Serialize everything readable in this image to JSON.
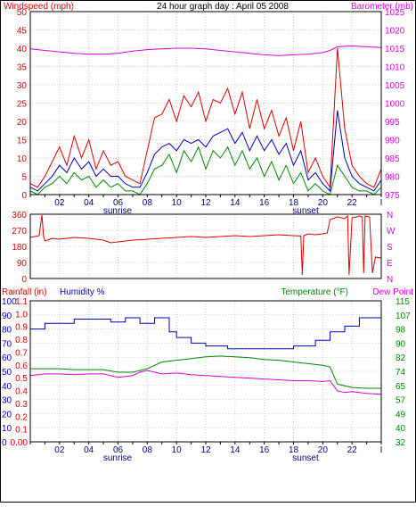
{
  "title": "24 hour graph day : April 05 2008",
  "colors": {
    "red": "#dd0000",
    "magenta": "#dd00dd",
    "blue": "#0000bb",
    "green": "#008800",
    "frame": "#000000"
  },
  "chart_data": [
    {
      "type": "line",
      "name": "wind-baro",
      "left_label": "Windspeed (mph)",
      "right_label": "Barometer (mb)",
      "left_ticks": [
        "0",
        "5",
        "10",
        "15",
        "20",
        "25",
        "30",
        "35",
        "40",
        "45",
        "50"
      ],
      "right_ticks": [
        "975",
        "980",
        "985",
        "990",
        "995",
        "1000",
        "1005",
        "1010",
        "1015",
        "1020",
        "1025"
      ],
      "x_ticks": [
        "02",
        "04",
        "06",
        "08",
        "10",
        "12",
        "14",
        "16",
        "18",
        "20",
        "22"
      ],
      "x_labels_below": [
        "sunrise",
        "sunset"
      ],
      "ylim_left": [
        0,
        50
      ],
      "ylim_right": [
        975,
        1025
      ],
      "xlim": [
        0,
        24
      ],
      "series": [
        {
          "color": "magenta",
          "axis": "right",
          "x": [
            0,
            1,
            2,
            3,
            4,
            5,
            6,
            7,
            8,
            9,
            10,
            11,
            12,
            13,
            14,
            15,
            16,
            17,
            18,
            19,
            20,
            20.5,
            21,
            22,
            23,
            24
          ],
          "y": [
            1014.8,
            1014.4,
            1014,
            1013.6,
            1013.4,
            1013.4,
            1013.6,
            1014.2,
            1014.6,
            1014.8,
            1015,
            1015,
            1014.8,
            1014.4,
            1014,
            1013.6,
            1013.2,
            1013,
            1013.2,
            1013.4,
            1013.8,
            1014.4,
            1015.4,
            1015.6,
            1015.4,
            1015.2
          ]
        },
        {
          "color": "red",
          "axis": "left",
          "x": [
            0,
            0.5,
            1,
            1.5,
            2,
            2.5,
            3,
            3.5,
            4,
            4.5,
            5,
            5.5,
            6,
            6.5,
            7,
            7.5,
            8,
            8.5,
            9,
            9.5,
            10,
            10.5,
            11,
            11.5,
            12,
            12.5,
            13,
            13.5,
            14,
            14.5,
            15,
            15.5,
            16,
            16.5,
            17,
            17.5,
            18,
            18.5,
            19,
            19.5,
            20,
            20.5,
            21,
            21.5,
            22,
            22.5,
            23,
            23.5,
            24
          ],
          "y": [
            3,
            2,
            5,
            9,
            13,
            8,
            16,
            10,
            15,
            7,
            12,
            8,
            9,
            5,
            4,
            3,
            12,
            21,
            22,
            26,
            20,
            27,
            24,
            28,
            20,
            26,
            25,
            29,
            22,
            28,
            18,
            26,
            18,
            23,
            16,
            21,
            12,
            20,
            6,
            10,
            5,
            2,
            40,
            18,
            8,
            5,
            3,
            2,
            7
          ]
        },
        {
          "color": "blue",
          "axis": "left",
          "x": [
            0,
            0.5,
            1,
            1.5,
            2,
            2.5,
            3,
            3.5,
            4,
            4.5,
            5,
            5.5,
            6,
            6.5,
            7,
            7.5,
            8,
            8.5,
            9,
            9.5,
            10,
            10.5,
            11,
            11.5,
            12,
            12.5,
            13,
            13.5,
            14,
            14.5,
            15,
            15.5,
            16,
            16.5,
            17,
            17.5,
            18,
            18.5,
            19,
            19.5,
            20,
            20.5,
            21,
            21.5,
            22,
            22.5,
            23,
            23.5,
            24
          ],
          "y": [
            2,
            1,
            3,
            5,
            8,
            6,
            10,
            7,
            9,
            5,
            7,
            5,
            5,
            3,
            2,
            2,
            6,
            11,
            13,
            14,
            12,
            15,
            14,
            15,
            13,
            16,
            17,
            18,
            14,
            17,
            12,
            16,
            12,
            15,
            11,
            14,
            8,
            12,
            4,
            6,
            3,
            1,
            23,
            10,
            5,
            3,
            2,
            1,
            4
          ]
        },
        {
          "color": "green",
          "axis": "left",
          "x": [
            0,
            0.5,
            1,
            1.5,
            2,
            2.5,
            3,
            3.5,
            4,
            4.5,
            5,
            5.5,
            6,
            6.5,
            7,
            7.5,
            8,
            8.5,
            9,
            9.5,
            10,
            10.5,
            11,
            11.5,
            12,
            12.5,
            13,
            13.5,
            14,
            14.5,
            15,
            15.5,
            16,
            16.5,
            17,
            17.5,
            18,
            18.5,
            19,
            19.5,
            20,
            20.5,
            21,
            21.5,
            22,
            22.5,
            23,
            23.5,
            24
          ],
          "y": [
            1,
            0,
            2,
            3,
            5,
            3,
            6,
            4,
            5,
            2,
            4,
            2,
            3,
            1,
            1,
            0,
            3,
            7,
            8,
            11,
            6,
            12,
            9,
            13,
            7,
            12,
            10,
            13,
            8,
            12,
            7,
            10,
            5,
            9,
            4,
            8,
            3,
            6,
            1,
            3,
            1,
            0,
            8,
            5,
            2,
            1,
            1,
            0,
            2
          ]
        }
      ]
    },
    {
      "type": "line",
      "name": "wind-direction",
      "left_ticks": [
        "0",
        "90",
        "180",
        "270",
        "360"
      ],
      "right_ticks": [
        "N",
        "E",
        "S",
        "W",
        "N"
      ],
      "ylim": [
        0,
        360
      ],
      "xlim": [
        0,
        24
      ],
      "series": [
        {
          "color": "red",
          "x": [
            0,
            0.6,
            0.8,
            0.9,
            1,
            1.5,
            2,
            3,
            4,
            5,
            5.5,
            6,
            7,
            8,
            9,
            10,
            11,
            12,
            13,
            14,
            15,
            16,
            17,
            18,
            18.5,
            18.6,
            18.7,
            19,
            19.5,
            20,
            20.3,
            20.5,
            21,
            21.5,
            21.7,
            21.8,
            22,
            22.3,
            22.5,
            22.7,
            22.8,
            22.9,
            23.2,
            23.4,
            23.6,
            24
          ],
          "y": [
            230,
            240,
            355,
            240,
            210,
            225,
            220,
            230,
            225,
            215,
            200,
            205,
            215,
            220,
            225,
            230,
            235,
            230,
            235,
            240,
            235,
            240,
            245,
            240,
            238,
            20,
            240,
            250,
            245,
            250,
            255,
            330,
            345,
            335,
            350,
            20,
            340,
            345,
            350,
            345,
            30,
            350,
            345,
            30,
            120,
            115
          ]
        }
      ]
    },
    {
      "type": "line",
      "name": "rain-humidity-temp",
      "left_label_rain": "Rainfall (in)",
      "left_label_humidity": "Humidity %",
      "right_label_temp": "Temperature (°F)",
      "right_label_dew": "Dew Point",
      "humidity_ticks": [
        "0",
        "10",
        "20",
        "30",
        "40",
        "50",
        "60",
        "70",
        "80",
        "90",
        "100"
      ],
      "rain_ticks": [
        "0.00",
        "0.1",
        "0.2",
        "0.3",
        "0.4",
        "0.5",
        "0.6",
        "0.7",
        "0.8",
        "0.9",
        "1.0",
        "1.1"
      ],
      "temp_ticks": [
        "32",
        "40",
        "49",
        "57",
        "65",
        "74",
        "82",
        "90",
        "98",
        "107",
        "115"
      ],
      "x_ticks": [
        "02",
        "04",
        "06",
        "08",
        "10",
        "12",
        "14",
        "16",
        "18",
        "20",
        "22"
      ],
      "x_labels_below": [
        "sunrise",
        "sunset"
      ],
      "ylim_humidity": [
        0,
        100
      ],
      "ylim_temp": [
        32,
        115
      ],
      "xlim": [
        0,
        24
      ],
      "series": [
        {
          "color": "blue",
          "axis": "humidity",
          "x": [
            0,
            1,
            1,
            3,
            3,
            5.5,
            5.5,
            6.5,
            6.5,
            7.5,
            7.5,
            8.5,
            8.5,
            9.5,
            9.5,
            10,
            10,
            11,
            11,
            12,
            12,
            13.5,
            13.5,
            18,
            18,
            19.5,
            19.5,
            20.5,
            20.5,
            21.5,
            21.5,
            22.5,
            22.5,
            24
          ],
          "y": [
            80,
            80,
            84,
            84,
            87,
            87,
            85,
            85,
            88,
            88,
            84,
            84,
            88,
            88,
            78,
            78,
            74,
            74,
            70,
            70,
            68,
            68,
            66,
            66,
            68,
            68,
            72,
            72,
            78,
            78,
            82,
            82,
            88,
            88
          ]
        },
        {
          "color": "green",
          "axis": "temp",
          "x": [
            0,
            1,
            2,
            3,
            4,
            5,
            6,
            7,
            8,
            9,
            10,
            11,
            12,
            13,
            14,
            15,
            16,
            17,
            18,
            19,
            20,
            20.5,
            21,
            22,
            23,
            24
          ],
          "y": [
            75,
            75,
            75,
            74.5,
            74.5,
            74.5,
            73,
            73,
            75,
            79,
            80,
            81,
            82,
            82.5,
            82,
            81.5,
            80.5,
            80,
            79,
            78,
            77,
            76,
            66,
            64,
            63.5,
            63.5
          ]
        },
        {
          "color": "magenta",
          "axis": "temp",
          "x": [
            0,
            1,
            2,
            3,
            4,
            5,
            6,
            7,
            7.5,
            8,
            8.5,
            9,
            10,
            11,
            12,
            13,
            14,
            15,
            16,
            17,
            18,
            19,
            20,
            20.5,
            21,
            21.5,
            22,
            23,
            24
          ],
          "y": [
            71,
            72,
            72,
            71.5,
            72,
            72,
            70,
            71,
            73,
            74,
            73,
            72,
            72.5,
            71.5,
            71,
            70.5,
            70,
            69.5,
            69,
            68.5,
            68,
            68,
            67.5,
            68,
            62,
            61,
            61.5,
            60.5,
            60
          ]
        },
        {
          "color": "red",
          "axis": "rain",
          "x": [
            0,
            24
          ],
          "y": [
            0,
            0
          ]
        }
      ]
    }
  ]
}
